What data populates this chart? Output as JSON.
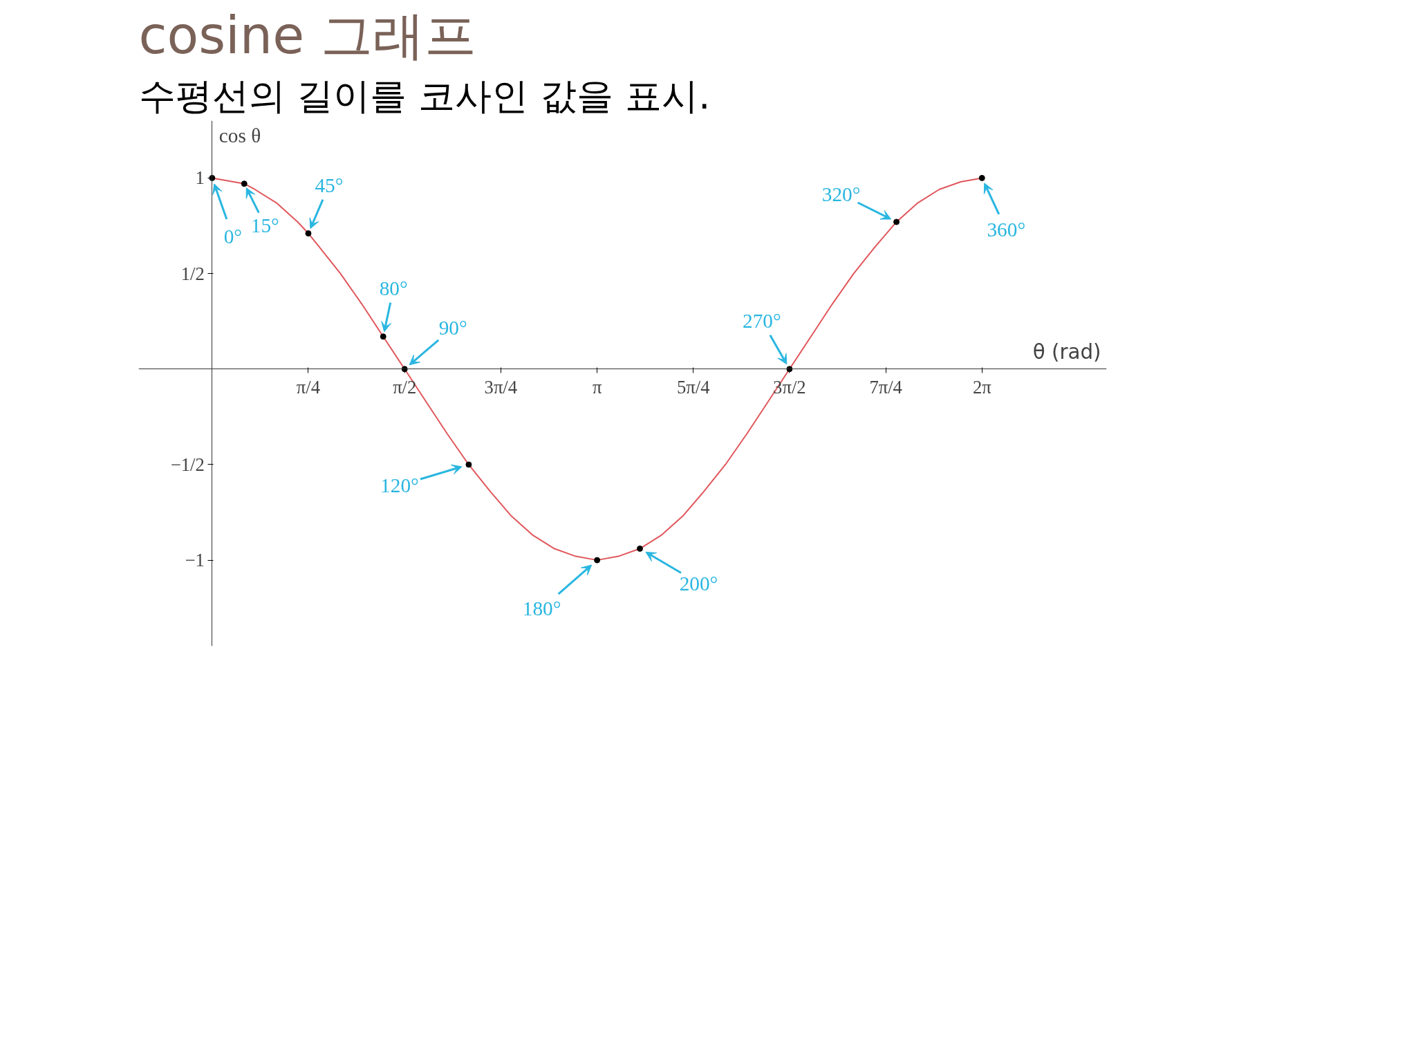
{
  "chart_data": {
    "type": "line",
    "title": "cosine 그래프",
    "subtitle": "수평선의 길이를 코사인 값을 표시.",
    "xlabel": "θ (rad)",
    "ylabel": "cos θ",
    "xlim": [
      -0.6,
      7.3
    ],
    "ylim": [
      -1.45,
      1.3
    ],
    "xticks": [
      {
        "value": 0.785,
        "label": "π/4"
      },
      {
        "value": 1.571,
        "label": "π/2"
      },
      {
        "value": 2.356,
        "label": "3π/4"
      },
      {
        "value": 3.142,
        "label": "π"
      },
      {
        "value": 3.927,
        "label": "5π/4"
      },
      {
        "value": 4.712,
        "label": "3π/2"
      },
      {
        "value": 5.498,
        "label": "7π/4"
      },
      {
        "value": 6.283,
        "label": "2π"
      }
    ],
    "yticks": [
      -1,
      {
        "value": -0.5,
        "label": "−1/2"
      },
      {
        "value": 0.5,
        "label": "1/2"
      },
      1
    ],
    "grid": false,
    "series": [
      {
        "color": "#e0575c",
        "marker": "none",
        "x": [
          0,
          0.175,
          0.262,
          0.349,
          0.524,
          0.698,
          0.785,
          0.873,
          1.047,
          1.222,
          1.396,
          1.571,
          1.745,
          1.92,
          2.094,
          2.269,
          2.443,
          2.618,
          2.793,
          2.967,
          3.142,
          3.316,
          3.491,
          3.665,
          3.84,
          4.014,
          4.189,
          4.363,
          4.538,
          4.712,
          4.887,
          5.061,
          5.236,
          5.411,
          5.585,
          5.76,
          5.934,
          6.109,
          6.283
        ],
        "values": [
          1,
          0.98,
          0.97,
          0.94,
          0.87,
          0.77,
          0.71,
          0.64,
          0.5,
          0.34,
          0.17,
          0,
          -0.17,
          -0.34,
          -0.5,
          -0.64,
          -0.77,
          -0.87,
          -0.94,
          -0.98,
          -1,
          -0.98,
          -0.94,
          -0.87,
          -0.77,
          -0.64,
          -0.5,
          -0.34,
          -0.17,
          0,
          0.17,
          0.34,
          0.5,
          0.64,
          0.77,
          0.87,
          0.94,
          0.98,
          1
        ]
      },
      {
        "type": "scatter",
        "color": "#000000",
        "marker": "circle",
        "x": [
          0,
          0.262,
          0.785,
          1.396,
          1.571,
          2.094,
          3.142,
          3.491,
          4.712,
          5.585,
          6.283
        ],
        "values": [
          1,
          0.97,
          0.71,
          0.17,
          0,
          -0.5,
          -1,
          -0.94,
          0,
          0.77,
          1
        ]
      }
    ],
    "annotations": [
      {
        "text": "0°",
        "x": 0,
        "y": 1
      },
      {
        "text": "15°",
        "x": 0.262,
        "y": 0.97
      },
      {
        "text": "45°",
        "x": 0.785,
        "y": 0.71
      },
      {
        "text": "80°",
        "x": 1.396,
        "y": 0.17
      },
      {
        "text": "90°",
        "x": 1.571,
        "y": 0
      },
      {
        "text": "120°",
        "x": 2.094,
        "y": -0.5
      },
      {
        "text": "180°",
        "x": 3.142,
        "y": -1
      },
      {
        "text": "200°",
        "x": 3.491,
        "y": -0.94
      },
      {
        "text": "270°",
        "x": 4.712,
        "y": 0
      },
      {
        "text": "320°",
        "x": 5.585,
        "y": 0.77
      },
      {
        "text": "360°",
        "x": 6.283,
        "y": 1
      }
    ]
  }
}
